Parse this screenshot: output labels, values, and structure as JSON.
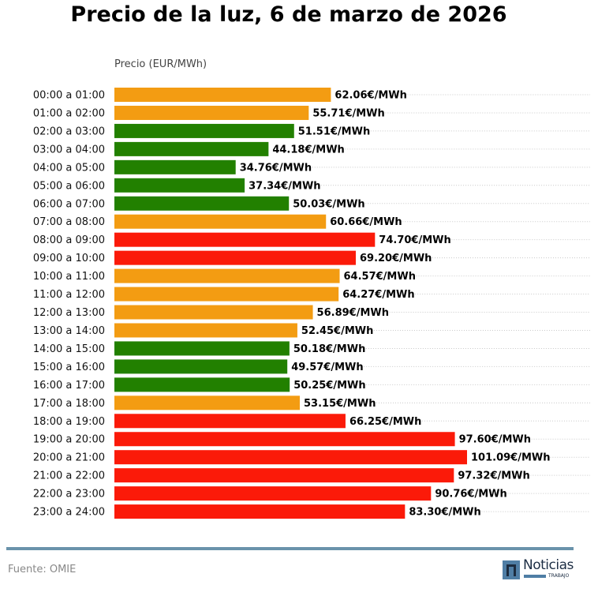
{
  "chart_data": {
    "type": "bar",
    "orientation": "horizontal",
    "title": "Precio de la luz, 6 de marzo de 2026",
    "xlabel": "Precio (EUR/MWh)",
    "ylabel": "",
    "unit_suffix": "€/MWh",
    "grid": "dotted horizontal lines after value labels",
    "categories": [
      "00:00 a 01:00",
      "01:00 a 02:00",
      "02:00 a 03:00",
      "03:00 a 04:00",
      "04:00 a 05:00",
      "05:00 a 06:00",
      "06:00 a 07:00",
      "07:00 a 08:00",
      "08:00 a 09:00",
      "09:00 a 10:00",
      "10:00 a 11:00",
      "11:00 a 12:00",
      "12:00 a 13:00",
      "13:00 a 14:00",
      "14:00 a 15:00",
      "15:00 a 16:00",
      "16:00 a 17:00",
      "17:00 a 18:00",
      "18:00 a 19:00",
      "19:00 a 20:00",
      "20:00 a 21:00",
      "21:00 a 22:00",
      "22:00 a 23:00",
      "23:00 a 24:00"
    ],
    "values": [
      62.06,
      55.71,
      51.51,
      44.18,
      34.76,
      37.34,
      50.03,
      60.66,
      74.7,
      69.2,
      64.57,
      64.27,
      56.89,
      52.45,
      50.18,
      49.57,
      50.25,
      53.15,
      66.25,
      97.6,
      101.09,
      97.32,
      90.76,
      83.3
    ],
    "labels": [
      "62.06€/MWh",
      "55.71€/MWh",
      "51.51€/MWh",
      "44.18€/MWh",
      "34.76€/MWh",
      "37.34€/MWh",
      "50.03€/MWh",
      "60.66€/MWh",
      "74.70€/MWh",
      "69.20€/MWh",
      "64.57€/MWh",
      "64.27€/MWh",
      "56.89€/MWh",
      "52.45€/MWh",
      "50.18€/MWh",
      "49.57€/MWh",
      "50.25€/MWh",
      "53.15€/MWh",
      "66.25€/MWh",
      "97.60€/MWh",
      "101.09€/MWh",
      "97.32€/MWh",
      "90.76€/MWh",
      "83.30€/MWh"
    ],
    "levels": [
      "medio",
      "medio",
      "bajo",
      "bajo",
      "bajo",
      "bajo",
      "bajo",
      "medio",
      "alto",
      "alto",
      "medio",
      "medio",
      "medio",
      "medio",
      "bajo",
      "bajo",
      "bajo",
      "medio",
      "alto",
      "alto",
      "alto",
      "alto",
      "alto",
      "alto"
    ],
    "level_colors": {
      "bajo": "#228000",
      "medio": "#f39c12",
      "alto": "#fb1a09"
    },
    "xlim": [
      0,
      136
    ]
  },
  "footer": {
    "source": "Fuente: OMIE",
    "logo_word": "Noticias",
    "logo_sub": "TRABAJO",
    "rule_color": "#6a93ab"
  }
}
